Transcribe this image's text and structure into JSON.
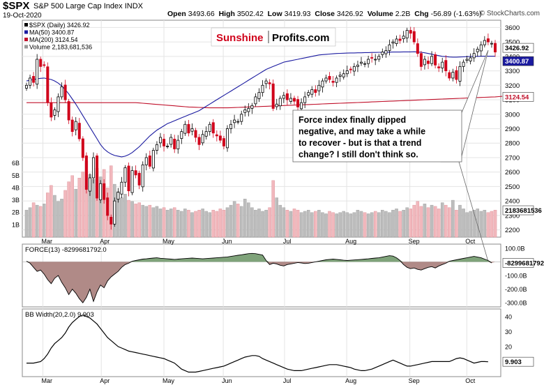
{
  "header": {
    "symbol": "$SPX",
    "description": "S&P 500 Large Cap Index",
    "exchange": "INDX",
    "date": "19-Oct-2020",
    "open_label": "Open",
    "open": "3493.66",
    "high_label": "High",
    "high": "3502.42",
    "low_label": "Low",
    "low": "3419.93",
    "close_label": "Close",
    "close": "3426.92",
    "volume_label": "Volume",
    "volume": "2.2B",
    "chg_label": "Chg",
    "chg": "-56.89 (-1.63%)",
    "down_color": "#d0021b",
    "credit": "© StockCharts.com"
  },
  "watermark": {
    "part1": "Sunshine",
    "part2": "Profits.com",
    "color1": "#d0021b",
    "color2": "#000000"
  },
  "annotation": {
    "text_lines": [
      "Force index finally dipped",
      "negative, and may take a while",
      "to recover - but is that a trend",
      "change? I still don't think so."
    ]
  },
  "chart_data": [
    {
      "type": "candlestick",
      "title": "$SPX (Daily) 3426.92",
      "legend": [
        {
          "label": "$SPX (Daily) 3426.92",
          "color": "#000000"
        },
        {
          "label": "MA(50) 3400.87",
          "color": "#1a1aa0"
        },
        {
          "label": "MA(200) 3124.54",
          "color": "#c0102a"
        },
        {
          "label": "Volume 2,183,681,536",
          "color": "#999999"
        }
      ],
      "ylim": [
        2150,
        3650
      ],
      "y_ticks": [
        2200,
        2300,
        2400,
        2500,
        2600,
        2700,
        2800,
        2900,
        3000,
        3100,
        3200,
        3300,
        3400,
        3500,
        3600
      ],
      "x_labels": [
        "Mar",
        "Apr",
        "May",
        "Jun",
        "Jul",
        "Aug",
        "Sep",
        "Oct"
      ],
      "last_price_tag": "3426.92",
      "ma50_tag": "3400.87",
      "ma200_tag": "3124.54",
      "close_series": [
        3200,
        3250,
        3220,
        3380,
        3330,
        3340,
        3080,
        2980,
        3030,
        3120,
        3190,
        3100,
        2960,
        2880,
        2950,
        2830,
        2700,
        2480,
        2560,
        2700,
        2420,
        2520,
        2410,
        2300,
        2240,
        2400,
        2460,
        2530,
        2630,
        2470,
        2610,
        2580,
        2510,
        2650,
        2700,
        2640,
        2750,
        2790,
        2840,
        2780,
        2780,
        2840,
        2760,
        2820,
        2880,
        2930,
        2870,
        2900,
        2840,
        2790,
        2860,
        2880,
        2930,
        2870,
        2850,
        2820,
        2780,
        2900,
        2930,
        2960,
        2950,
        3000,
        3030,
        3040,
        3060,
        3120,
        3150,
        3200,
        3230,
        3210,
        3040,
        3070,
        3110,
        3130,
        3100,
        3110,
        3090,
        3050,
        3080,
        3120,
        3150,
        3170,
        3150,
        3200,
        3230,
        3250,
        3240,
        3220,
        3250,
        3270,
        3280,
        3300,
        3310,
        3330,
        3340,
        3360,
        3350,
        3380,
        3390,
        3380,
        3400,
        3430,
        3440,
        3480,
        3500,
        3520,
        3510,
        3540,
        3580,
        3560,
        3500,
        3420,
        3330,
        3380,
        3350,
        3400,
        3340,
        3320,
        3360,
        3300,
        3250,
        3290,
        3240,
        3330,
        3360,
        3380,
        3390,
        3420,
        3450,
        3480,
        3510,
        3500,
        3490,
        3430
      ],
      "ma50": [
        3230,
        3235,
        3240,
        3245,
        3248,
        3250,
        3245,
        3240,
        3230,
        3215,
        3195,
        3170,
        3140,
        3105,
        3070,
        3030,
        2990,
        2950,
        2910,
        2870,
        2830,
        2790,
        2760,
        2740,
        2725,
        2715,
        2710,
        2705,
        2710,
        2720,
        2735,
        2755,
        2775,
        2800,
        2825,
        2850,
        2870,
        2890,
        2905,
        2920,
        2935,
        2945,
        2955,
        2965,
        2975,
        2985,
        2995,
        3005,
        3015,
        3025,
        3040,
        3055,
        3070,
        3085,
        3100,
        3115,
        3130,
        3145,
        3160,
        3175,
        3190,
        3205,
        3220,
        3235,
        3250,
        3265,
        3280,
        3295,
        3310,
        3320,
        3330,
        3340,
        3350,
        3360,
        3365,
        3370,
        3375,
        3380,
        3385,
        3390,
        3395,
        3400,
        3405,
        3410,
        3412,
        3414,
        3416,
        3418,
        3420,
        3421,
        3422,
        3423,
        3424,
        3424,
        3425,
        3425,
        3426,
        3426,
        3427,
        3427,
        3428,
        3428,
        3429,
        3429,
        3430,
        3430,
        3430,
        3431,
        3431,
        3431,
        3432,
        3430,
        3428,
        3425,
        3420,
        3415,
        3410,
        3405,
        3400,
        3398,
        3396,
        3395,
        3395,
        3396,
        3397,
        3398,
        3399,
        3400,
        3400,
        3401,
        3401,
        3401,
        3401,
        3401
      ],
      "ma200": [
        3080,
        3080,
        3080,
        3080,
        3080,
        3080,
        3080,
        3080,
        3080,
        3080,
        3080,
        3080,
        3080,
        3080,
        3080,
        3080,
        3080,
        3080,
        3080,
        3080,
        3080,
        3080,
        3080,
        3080,
        3080,
        3080,
        3080,
        3080,
        3080,
        3080,
        3080,
        3080,
        3078,
        3076,
        3074,
        3072,
        3070,
        3068,
        3066,
        3064,
        3062,
        3060,
        3058,
        3056,
        3054,
        3052,
        3050,
        3049,
        3048,
        3047,
        3046,
        3045,
        3044,
        3044,
        3044,
        3044,
        3044,
        3044,
        3045,
        3046,
        3047,
        3048,
        3049,
        3050,
        3051,
        3052,
        3053,
        3054,
        3055,
        3056,
        3057,
        3058,
        3059,
        3060,
        3061,
        3062,
        3063,
        3064,
        3065,
        3066,
        3067,
        3068,
        3069,
        3070,
        3071,
        3072,
        3073,
        3074,
        3075,
        3076,
        3077,
        3078,
        3079,
        3080,
        3081,
        3082,
        3083,
        3084,
        3085,
        3086,
        3087,
        3088,
        3089,
        3090,
        3091,
        3092,
        3093,
        3094,
        3095,
        3096,
        3097,
        3098,
        3099,
        3100,
        3101,
        3102,
        3103,
        3104,
        3105,
        3106,
        3107,
        3108,
        3109,
        3110,
        3111,
        3112,
        3113,
        3114,
        3115,
        3116,
        3117,
        3118,
        3119,
        3120,
        3122,
        3124
      ]
    },
    {
      "type": "bar",
      "title": "Volume",
      "y_ticks": [
        "1B",
        "2B",
        "3B",
        "4B",
        "5B",
        "6B"
      ],
      "last_value_tag": "2183681536",
      "ylim": [
        0,
        6.8
      ],
      "values": [
        2.2,
        2.4,
        2.8,
        2.6,
        2.5,
        2.7,
        3.6,
        4.2,
        3.4,
        2.9,
        3.1,
        3.8,
        4.5,
        5.0,
        3.9,
        4.8,
        5.3,
        6.2,
        5.1,
        4.7,
        5.6,
        4.9,
        5.5,
        4.0,
        5.8,
        4.3,
        3.7,
        3.2,
        3.5,
        3.0,
        2.9,
        2.7,
        2.8,
        2.6,
        2.5,
        2.6,
        2.4,
        2.5,
        2.3,
        2.4,
        2.2,
        2.3,
        2.4,
        2.2,
        2.1,
        2.3,
        2.2,
        2.0,
        2.1,
        2.2,
        2.3,
        2.1,
        2.0,
        2.2,
        2.1,
        2.3,
        2.2,
        2.4,
        2.6,
        2.9,
        2.7,
        2.5,
        3.1,
        2.8,
        2.4,
        2.2,
        2.3,
        2.1,
        2.2,
        2.4,
        4.6,
        3.2,
        2.6,
        2.4,
        2.2,
        2.1,
        2.3,
        2.2,
        2.0,
        2.1,
        2.2,
        2.0,
        2.1,
        2.2,
        2.0,
        1.9,
        2.1,
        2.0,
        1.9,
        2.0,
        2.1,
        2.0,
        1.9,
        2.0,
        2.2,
        2.1,
        2.0,
        1.9,
        2.0,
        2.1,
        2.0,
        2.2,
        2.1,
        2.0,
        2.2,
        2.3,
        2.1,
        2.2,
        2.4,
        2.3,
        2.6,
        2.9,
        2.5,
        2.7,
        2.4,
        2.6,
        2.5,
        2.3,
        2.8,
        2.6,
        2.4,
        3.0,
        2.2,
        2.6,
        2.3,
        2.0,
        2.1,
        2.2,
        2.3,
        2.1,
        2.2,
        2.0,
        2.1,
        2.2
      ]
    },
    {
      "type": "area",
      "title": "FORCE(13) -8299681792.0",
      "y_ticks": [
        "100.0B",
        "-100.0B",
        "-200.0B",
        "-300.0B"
      ],
      "tick_values": [
        100,
        -100,
        -200,
        -300
      ],
      "ylim": [
        -330,
        130
      ],
      "last_value_tag": "-8299681792",
      "values": [
        5,
        -10,
        -40,
        -70,
        -60,
        -90,
        -130,
        -160,
        -120,
        -100,
        -150,
        -190,
        -240,
        -200,
        -230,
        -270,
        -300,
        -260,
        -200,
        -290,
        -220,
        -170,
        -190,
        -140,
        -110,
        -90,
        -70,
        -40,
        -20,
        -10,
        5,
        10,
        15,
        20,
        22,
        25,
        28,
        30,
        26,
        24,
        22,
        20,
        18,
        20,
        22,
        24,
        26,
        28,
        26,
        24,
        22,
        24,
        26,
        28,
        30,
        32,
        34,
        36,
        40,
        44,
        48,
        52,
        56,
        60,
        62,
        60,
        55,
        50,
        10,
        -20,
        -10,
        -15,
        -25,
        -30,
        -20,
        -15,
        -10,
        -5,
        -8,
        -12,
        -10,
        -5,
        0,
        5,
        10,
        15,
        18,
        20,
        18,
        15,
        12,
        10,
        12,
        14,
        16,
        18,
        20,
        22,
        25,
        28,
        30,
        35,
        40,
        45,
        42,
        30,
        10,
        -20,
        -40,
        -50,
        -45,
        -55,
        -60,
        -50,
        -40,
        -35,
        -45,
        -30,
        -20,
        -10,
        5,
        10,
        15,
        20,
        25,
        30,
        35,
        40,
        35,
        30,
        20,
        10,
        -8
      ]
    },
    {
      "type": "line",
      "title": "BB Width(20,2.0) 9.903",
      "y_ticks": [
        "10",
        "20",
        "30",
        "40"
      ],
      "tick_values": [
        10,
        20,
        30,
        40
      ],
      "ylim": [
        0,
        45
      ],
      "last_value_tag": "9.903",
      "values": [
        9,
        9,
        9,
        9.5,
        10,
        12,
        15,
        19,
        22,
        24,
        26,
        29,
        33,
        36,
        38,
        40,
        41,
        40,
        39,
        37,
        35,
        32,
        29,
        26,
        24,
        22,
        20,
        19,
        18,
        17,
        16.5,
        16,
        15.5,
        15,
        14.5,
        14,
        13.5,
        13,
        12.5,
        12,
        11,
        10,
        9,
        7,
        5,
        4,
        3,
        3,
        3,
        3.5,
        4,
        4.5,
        5,
        5.5,
        6,
        6.5,
        7,
        8,
        9,
        10,
        11,
        12,
        13,
        13.5,
        14,
        14,
        13.5,
        12,
        11,
        10,
        9,
        8,
        7,
        6,
        5,
        4.5,
        4,
        4,
        4,
        4.5,
        5,
        5.5,
        6,
        6.5,
        7,
        7.5,
        8,
        8,
        8,
        7.5,
        7,
        6.5,
        6,
        5,
        4.5,
        4,
        4,
        4.5,
        5,
        6,
        7,
        8,
        9,
        10,
        11,
        10,
        9,
        8,
        7,
        7,
        7.5,
        8,
        8.5,
        9,
        9.5,
        10,
        10,
        10,
        10,
        10,
        10,
        11,
        12,
        12.5,
        12,
        11,
        10,
        9,
        9.5,
        10,
        10,
        9.9
      ]
    }
  ]
}
